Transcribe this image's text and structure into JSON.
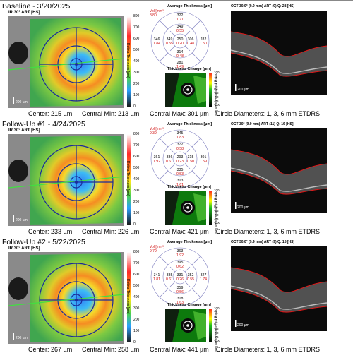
{
  "colorbar_ticks": [
    "800",
    "700",
    "600",
    "500",
    "400",
    "300",
    "200",
    "100",
    "0"
  ],
  "colorbar_title": "Retina Thickness [µm]",
  "change_ticks": [
    "100",
    "75",
    "50",
    "25",
    "0",
    "-25",
    "-50",
    "-75",
    "-100"
  ],
  "change_side": "Retina Thickness Change [µm]",
  "avg_title": "Average Thickness [µm]",
  "change_title": "Thickness Change [µm]",
  "circle_label": "Circle Diameters:  1, 3, 6 mm ETDRS",
  "colors": {
    "accent_red": "#d01010",
    "grid_blue": "#2030a0"
  },
  "sections": [
    {
      "header": "Baseline - 3/20/2025",
      "ir_label": "IR 30° ART [HS]",
      "oct_label": "OCT 30.0° (9.9 mm) ART (9) Q: 28 [HS]",
      "vol_label": "Vol [mm³]",
      "vol_value": "8.80",
      "center": "Center: 215 µm",
      "central_min": "Central Min: 213 µm",
      "central_max": "Central Max: 301 µm",
      "cells": {
        "sup_out_t": "322",
        "sup_out_v": "1.71",
        "sup_in_t": "349",
        "sup_in_v": "0.55",
        "cen_t": "250",
        "cen_v": "0.20",
        "nas_in_t": "306",
        "nas_in_v": "0.48",
        "nas_out_t": "282",
        "nas_out_v": "1.50",
        "tem_in_t": "349",
        "tem_in_v": "0.55",
        "tem_out_t": "346",
        "tem_out_v": "1.84",
        "inf_in_t": "314",
        "inf_in_v": "0.48",
        "inf_out_t": "281",
        "inf_out_v": "1.49"
      }
    },
    {
      "header": "Follow-Up #1 - 4/24/2025",
      "ir_label": "IR 30° ART [HS]",
      "oct_label": "OCT 30° (9.9 mm) ART (11) Q: 16 [HS]",
      "vol_label": "Vol [mm³]",
      "vol_value": "9.39",
      "center": "Center: 233 µm",
      "central_min": "Central Min: 226 µm",
      "central_max": "Central Max: 421 µm",
      "cells": {
        "sup_out_t": "345",
        "sup_out_v": "1.83",
        "sup_in_t": "372",
        "sup_in_v": "0.58",
        "cen_t": "293",
        "cen_v": "0.23",
        "nas_in_t": "315",
        "nas_in_v": "0.50",
        "nas_out_t": "301",
        "nas_out_v": "1.59",
        "tem_in_t": "386",
        "tem_in_v": "0.61",
        "tem_out_t": "361",
        "tem_out_v": "1.92",
        "inf_in_t": "335",
        "inf_in_v": "0.53",
        "inf_out_t": "303",
        "inf_out_v": "1.61"
      }
    },
    {
      "header": "Follow-Up #2 - 5/22/2025",
      "ir_label": "IR 30° ART [HS]",
      "oct_label": "OCT 30.0° (9.9 mm) ART (9) Q: 15 [HS]",
      "vol_label": "Vol [mm³]",
      "vol_value": "9.79",
      "center": "Center: 267 µm",
      "central_min": "Central Min: 258 µm",
      "central_max": "Central Max: 441 µm",
      "cells": {
        "sup_out_t": "363",
        "sup_out_v": "1.92",
        "sup_in_t": "395",
        "sup_in_v": "0.62",
        "cen_t": "331",
        "cen_v": "0.26",
        "nas_in_t": "352",
        "nas_in_v": "0.55",
        "nas_out_t": "327",
        "nas_out_v": "1.74",
        "tem_in_t": "385",
        "tem_in_v": "0.61",
        "tem_out_t": "341",
        "tem_out_v": "1.81",
        "inf_in_t": "359",
        "inf_in_v": "0.56",
        "inf_out_t": "308",
        "inf_out_v": "1.63"
      }
    }
  ]
}
